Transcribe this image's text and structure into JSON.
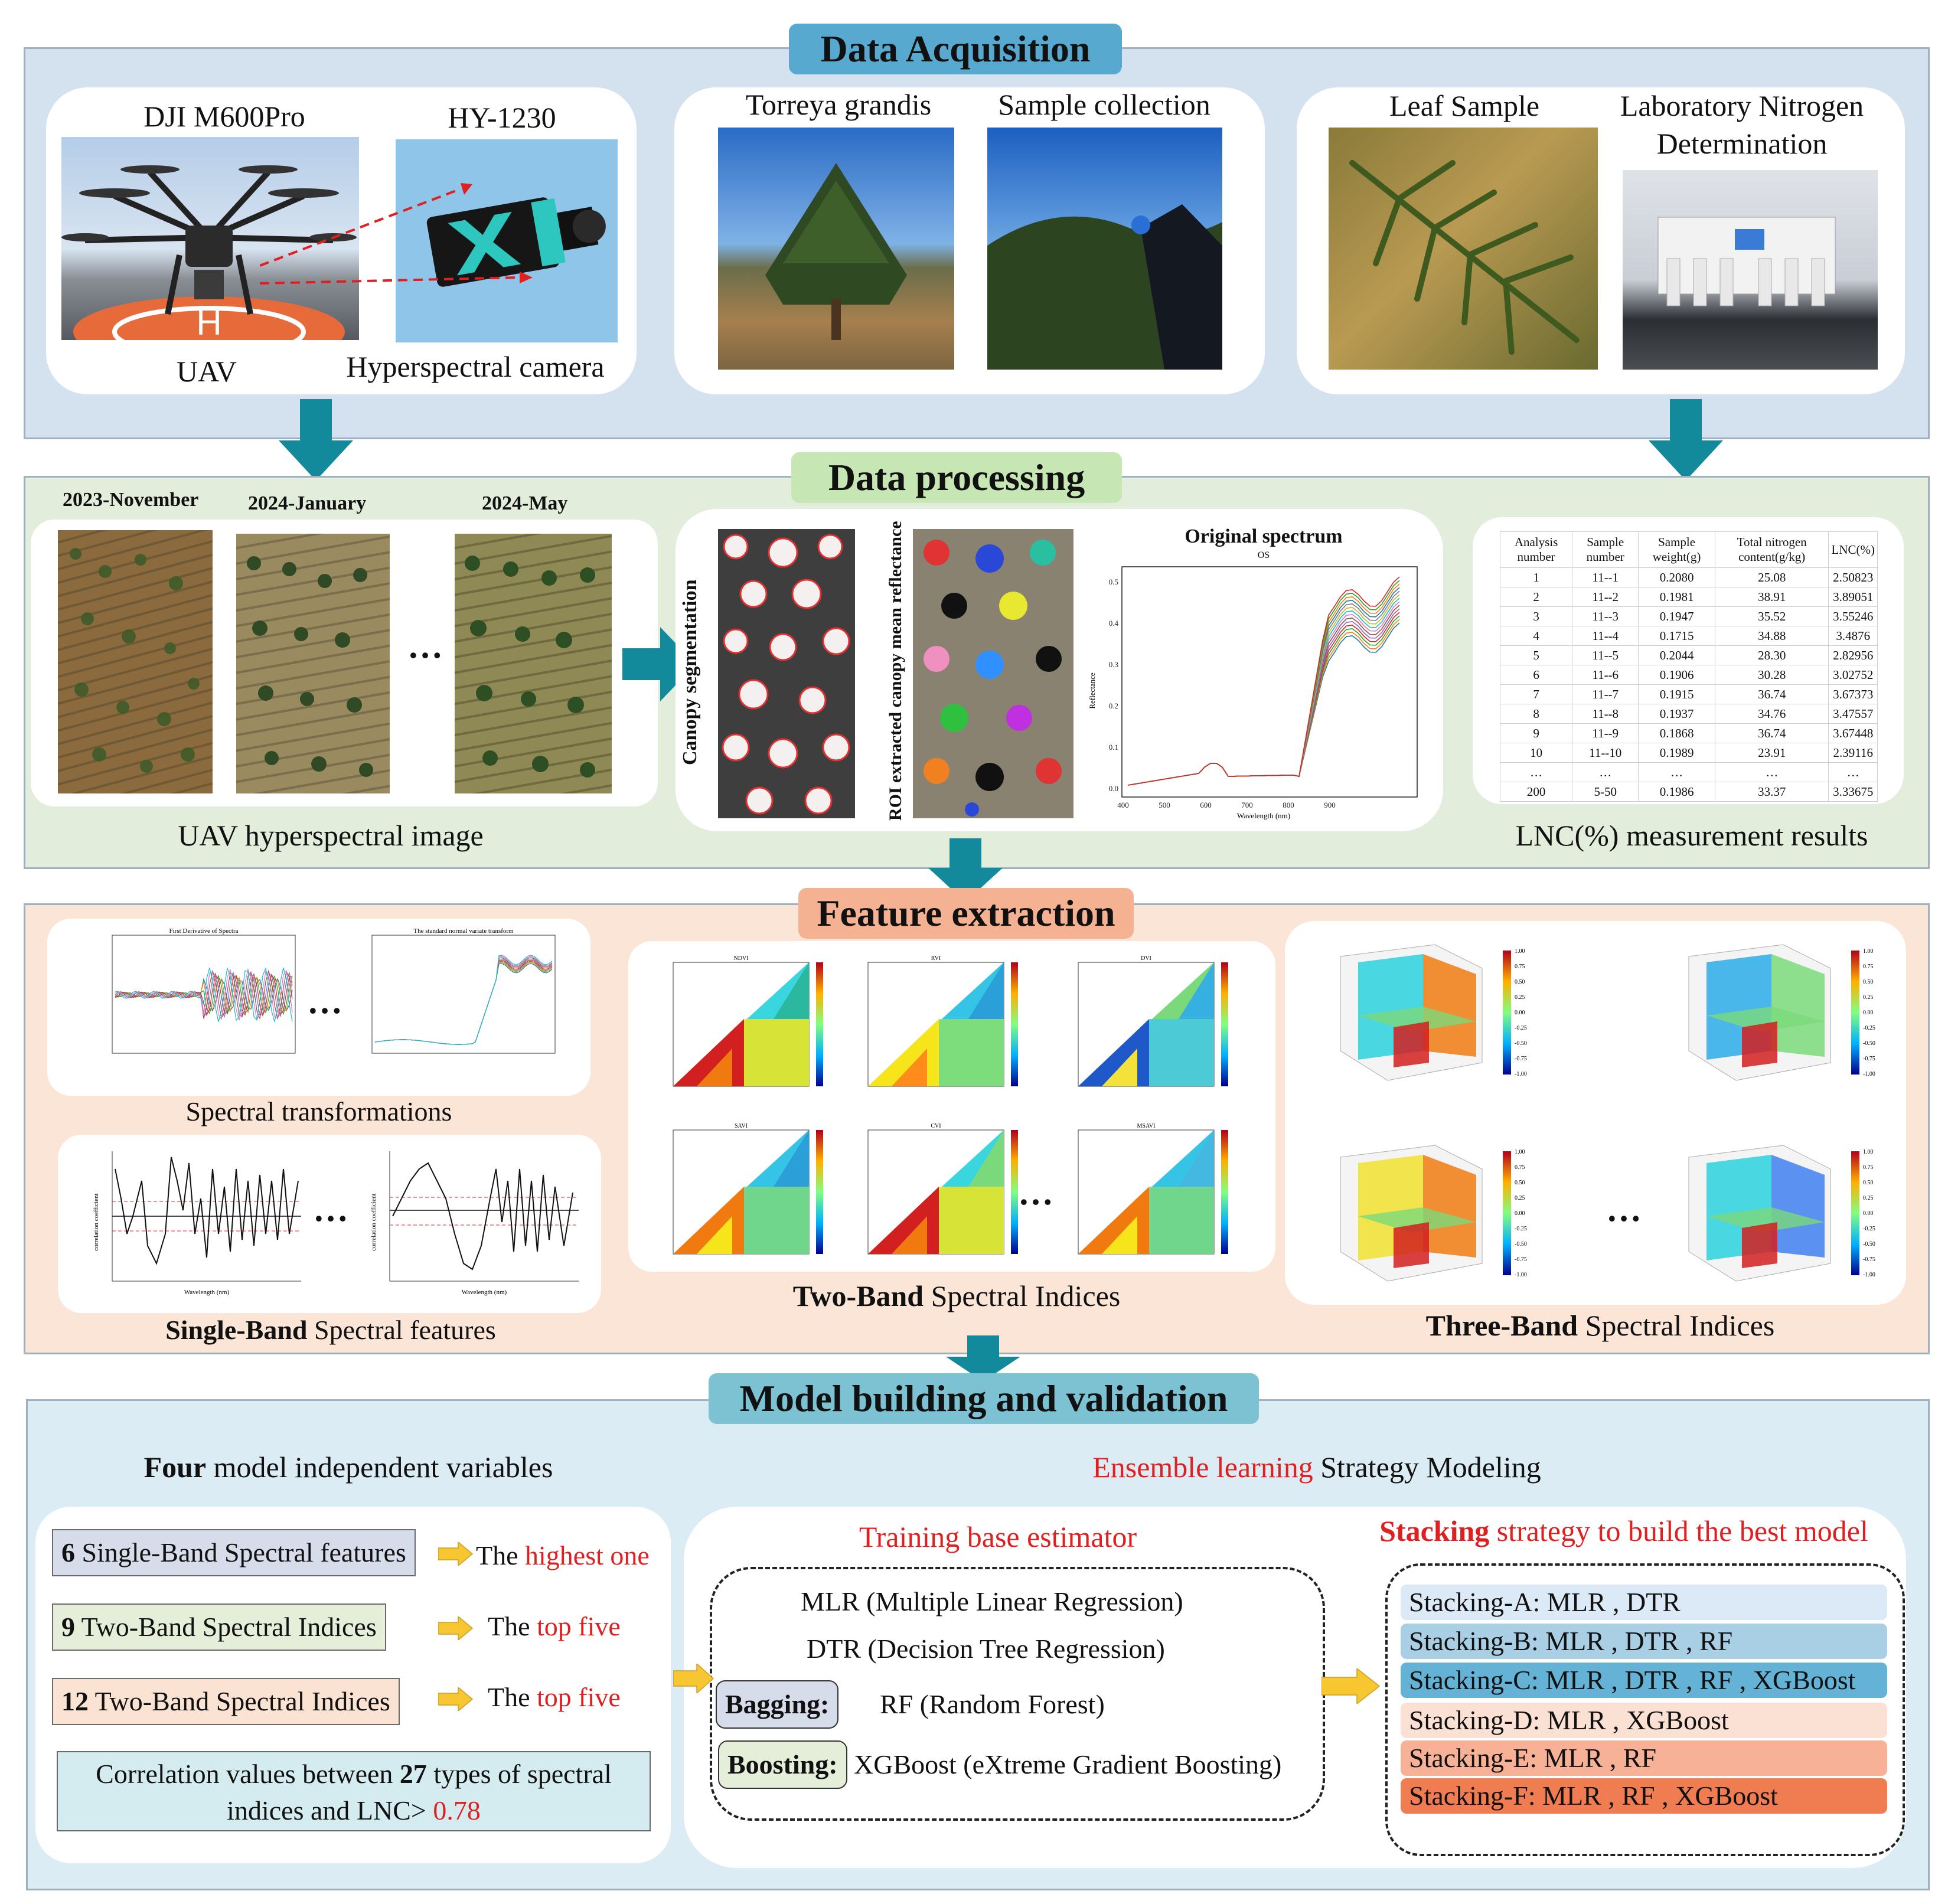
{
  "sections": {
    "acquisition": {
      "title": "Data Acquisition",
      "labels": {
        "drone": "DJI M600Pro",
        "camera": "HY-1230",
        "uav": "UAV",
        "hyper_camera": "Hyperspectral camera",
        "tree": "Torreya grandis",
        "sample_collection": "Sample collection",
        "leaf_sample": "Leaf Sample",
        "lab_line1": "Laboratory Nitrogen",
        "lab_line2": "Determination"
      }
    },
    "processing": {
      "title": "Data processing",
      "dates": [
        "2023-November",
        "2024-January",
        "2024-May"
      ],
      "ellipsis": "…",
      "uav_caption": "UAV hyperspectral image",
      "canopy_seg": "Canopy segmentation",
      "roi_label": "ROI extracted canopy mean reflectance",
      "spectrum_title": "Original spectrum",
      "spectrum_subtitle": "OS",
      "spectrum_ylabel": "Reflectance",
      "spectrum_xlabel": "Wavelength (nm)",
      "spectrum_yticks": [
        "0.5",
        "0.4",
        "0.3",
        "0.2",
        "0.1",
        "0.0"
      ],
      "spectrum_xticks": [
        "400",
        "500",
        "600",
        "700",
        "800",
        "900"
      ],
      "lnc_caption": "LNC(%) measurement results",
      "table": {
        "headers": [
          "Analysis number",
          "Sample number",
          "Sample weight(g)",
          "Total nitrogen content(g/kg)",
          "LNC(%)"
        ],
        "rows": [
          [
            "1",
            "11--1",
            "0.2080",
            "25.08",
            "2.50823"
          ],
          [
            "2",
            "11--2",
            "0.1981",
            "38.91",
            "3.89051"
          ],
          [
            "3",
            "11--3",
            "0.1947",
            "35.52",
            "3.55246"
          ],
          [
            "4",
            "11--4",
            "0.1715",
            "34.88",
            "3.4876"
          ],
          [
            "5",
            "11--5",
            "0.2044",
            "28.30",
            "2.82956"
          ],
          [
            "6",
            "11--6",
            "0.1906",
            "30.28",
            "3.02752"
          ],
          [
            "7",
            "11--7",
            "0.1915",
            "36.74",
            "3.67373"
          ],
          [
            "8",
            "11--8",
            "0.1937",
            "34.76",
            "3.47557"
          ],
          [
            "9",
            "11--9",
            "0.1868",
            "36.74",
            "3.67448"
          ],
          [
            "10",
            "11--10",
            "0.1989",
            "23.91",
            "2.39116"
          ],
          [
            "…",
            "…",
            "…",
            "…",
            "…"
          ],
          [
            "200",
            "5-50",
            "0.1986",
            "33.37",
            "3.33675"
          ]
        ]
      }
    },
    "features": {
      "title": "Feature extraction",
      "spectral_transformations": "Spectral transformations",
      "fd_title": "First Derivative of Spectra",
      "snv_title": "The standard normal variate transform",
      "single_bold": "Single-Band",
      "single_rest": " Spectral features",
      "single_ylabel": "correlation coefficient",
      "single_xlabel": "Wavelength (nm)",
      "two_bold": "Two-Band",
      "two_rest": " Spectral Indices",
      "three_bold": "Three-Band",
      "three_rest": " Spectral Indices",
      "heatmap_titles": [
        "NDVI",
        "RVI",
        "DVI",
        "SAVI",
        "CVI",
        "MSAVI"
      ],
      "colorbar_ticks": [
        "1.00",
        "0.75",
        "0.50",
        "0.25",
        "0.00",
        "-0.25",
        "-0.50",
        "-0.75",
        "-1.00"
      ]
    },
    "model": {
      "title": "Model building and validation",
      "four_bold": "Four",
      "four_rest": " model independent variables",
      "ensemble_red": "Ensemble learning",
      "ensemble_rest": " Strategy Modeling",
      "var1_num": "6",
      "var1_text": " Single-Band Spectral features",
      "var1_res_a": "The ",
      "var1_res_b": "highest one",
      "var2_num": "9",
      "var2_text": " Two-Band Spectral Indices",
      "var2_res_a": "The ",
      "var2_res_b": "top five",
      "var3_num": "12",
      "var3_text": " Two-Band Spectral Indices",
      "var3_res_a": "The ",
      "var3_res_b": "top five",
      "corr_a": "Correlation values between ",
      "corr_b": "27",
      "corr_c": " types of spectral",
      "corr_d": "indices and LNC> ",
      "corr_e": "0.78",
      "training_title": "Training base estimator",
      "mlr": "MLR (Multiple Linear Regression)",
      "dtr": "DTR (Decision Tree Regression)",
      "bagging": "Bagging:",
      "rf": "RF (Random Forest)",
      "boosting": "Boosting:",
      "xgb": "XGBoost (eXtreme Gradient Boosting)",
      "stacking_bold": "Stacking",
      "stacking_rest": " strategy to build the best model",
      "stacks": [
        {
          "label": "Stacking-A: MLR , DTR",
          "color": "#dce9f6"
        },
        {
          "label": "Stacking-B: MLR , DTR , RF",
          "color": "#a9cfe5"
        },
        {
          "label": "Stacking-C: MLR , DTR , RF , XGBoost",
          "color": "#64b3d6"
        },
        {
          "label": "Stacking-D: MLR , XGBoost",
          "color": "#fbe1d3"
        },
        {
          "label": "Stacking-E: MLR , RF",
          "color": "#f6b196"
        },
        {
          "label": "Stacking-F: MLR , RF , XGBoost",
          "color": "#f07c52"
        }
      ]
    }
  },
  "colors": {
    "acq_panel": "#d4e1ee",
    "proc_panel": "#e3eddc",
    "feat_panel": "#fbe5d6",
    "model_panel": "#dcecf4",
    "acq_title": "#58a9cf",
    "proc_title": "#c6e6b4",
    "feat_title": "#f5b293",
    "model_title": "#7cc2d2",
    "teal_arrow": "#138a9b",
    "yellow_arrow": "#f7c631"
  }
}
